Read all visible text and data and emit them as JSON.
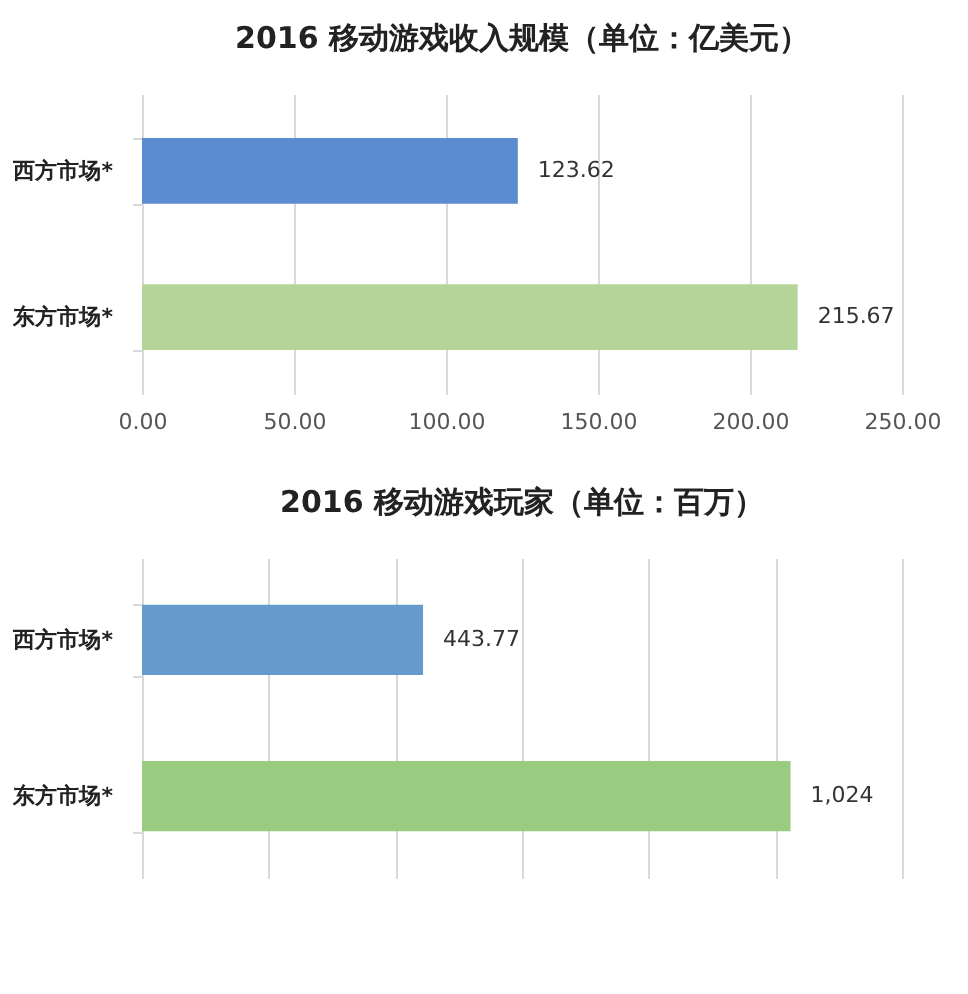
{
  "chart_data": [
    {
      "type": "bar",
      "orientation": "horizontal",
      "title": "2016 移动游戏收入规模（单位：亿美元）",
      "categories": [
        "西方市场*",
        "东方市场*"
      ],
      "values": [
        123.62,
        215.67
      ],
      "colors": [
        "#5b8bd0",
        "#b5d49a"
      ],
      "data_labels": true,
      "xlim": [
        0,
        250
      ],
      "xticks": [
        {
          "value": 0,
          "label": "0.00"
        },
        {
          "value": 50,
          "label": "50.00"
        },
        {
          "value": 100,
          "label": "100.00"
        },
        {
          "value": 150,
          "label": "150.00"
        },
        {
          "value": 200,
          "label": "200.00"
        },
        {
          "value": 250,
          "label": "250.00"
        }
      ],
      "grid": "x"
    },
    {
      "type": "bar",
      "orientation": "horizontal",
      "title": "2016 移动游戏玩家（单位：百万）",
      "categories": [
        "西方市场*",
        "东方市场*"
      ],
      "values": [
        443.77,
        1024
      ],
      "value_labels": [
        "443.77",
        "1,024"
      ],
      "colors": [
        "#6699cc",
        "#99cc80"
      ],
      "xlim": [
        0,
        1200
      ],
      "xticks": [
        {
          "value": 0,
          "label": null
        },
        {
          "value": 200,
          "label": null
        },
        {
          "value": 400,
          "label": null
        },
        {
          "value": 600,
          "label": null
        },
        {
          "value": 800,
          "label": null
        },
        {
          "value": 1000,
          "label": null
        },
        {
          "value": 1200,
          "label": null
        }
      ],
      "tick_labels": "y",
      "grid": "x"
    }
  ]
}
